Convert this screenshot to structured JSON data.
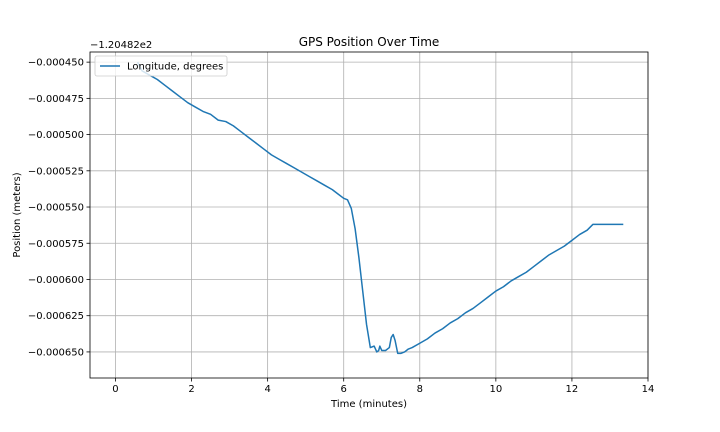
{
  "chart_data": {
    "type": "line",
    "title": "GPS Position Over Time",
    "xlabel": "Time (minutes)",
    "ylabel": "Position (meters)",
    "offset_text": "−1.20482e2",
    "xlim": [
      -0.67,
      14.0
    ],
    "ylim": [
      -0.000668,
      -0.000443
    ],
    "xticks": [
      0,
      2,
      4,
      6,
      8,
      10,
      12,
      14
    ],
    "yticks": [
      -0.00045,
      -0.000475,
      -0.0005,
      -0.000525,
      -0.00055,
      -0.000575,
      -0.0006,
      -0.000625,
      -0.00065
    ],
    "ytick_labels": [
      "−0.000450",
      "−0.000475",
      "−0.000500",
      "−0.000525",
      "−0.000550",
      "−0.000575",
      "−0.000600",
      "−0.000625",
      "−0.000650"
    ],
    "grid": true,
    "legend": {
      "placement": "top-left"
    },
    "color": "#1f77b4",
    "series": [
      {
        "name": "Longitude, degrees",
        "x": [
          0.58,
          0.7,
          0.9,
          1.1,
          1.3,
          1.5,
          1.7,
          1.9,
          2.1,
          2.3,
          2.5,
          2.7,
          2.9,
          3.1,
          3.3,
          3.5,
          3.7,
          3.9,
          4.1,
          4.3,
          4.5,
          4.7,
          4.9,
          5.1,
          5.3,
          5.5,
          5.7,
          5.85,
          6.0,
          6.1,
          6.2,
          6.3,
          6.4,
          6.5,
          6.6,
          6.7,
          6.8,
          6.87,
          6.92,
          6.95,
          7.0,
          7.1,
          7.2,
          7.25,
          7.3,
          7.35,
          7.42,
          7.5,
          7.6,
          7.7,
          7.8,
          8.0,
          8.2,
          8.4,
          8.6,
          8.8,
          9.0,
          9.2,
          9.4,
          9.6,
          9.8,
          10.0,
          10.2,
          10.4,
          10.6,
          10.8,
          11.0,
          11.2,
          11.4,
          11.6,
          11.8,
          12.0,
          12.2,
          12.4,
          12.55,
          12.7,
          12.9,
          13.1,
          13.35
        ],
        "y": [
          -0.00045,
          -0.000456,
          -0.000459,
          -0.000462,
          -0.000466,
          -0.00047,
          -0.000474,
          -0.000478,
          -0.000481,
          -0.000484,
          -0.000486,
          -0.00049,
          -0.000491,
          -0.000494,
          -0.000498,
          -0.000502,
          -0.000506,
          -0.00051,
          -0.000514,
          -0.000517,
          -0.00052,
          -0.000523,
          -0.000526,
          -0.000529,
          -0.000532,
          -0.000535,
          -0.000538,
          -0.000541,
          -0.000544,
          -0.000545,
          -0.000551,
          -0.000565,
          -0.000585,
          -0.000608,
          -0.000631,
          -0.000647,
          -0.000646,
          -0.00065,
          -0.000649,
          -0.000646,
          -0.000649,
          -0.000649,
          -0.000647,
          -0.00064,
          -0.000638,
          -0.000642,
          -0.000651,
          -0.000651,
          -0.00065,
          -0.000648,
          -0.000647,
          -0.000644,
          -0.000641,
          -0.000637,
          -0.000634,
          -0.00063,
          -0.000627,
          -0.000623,
          -0.00062,
          -0.000616,
          -0.000612,
          -0.000608,
          -0.000605,
          -0.000601,
          -0.000598,
          -0.000595,
          -0.000591,
          -0.000587,
          -0.000583,
          -0.00058,
          -0.000577,
          -0.000573,
          -0.000569,
          -0.000566,
          -0.000562,
          -0.000562,
          -0.000562,
          -0.000562,
          -0.000562
        ]
      }
    ]
  }
}
